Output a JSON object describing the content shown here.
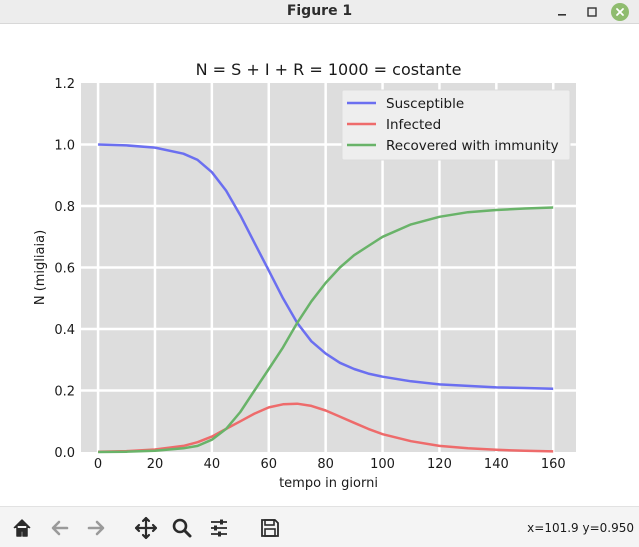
{
  "window": {
    "title": "Figure 1",
    "buttons": {
      "minimize": "minimize-icon",
      "maximize": "maximize-icon",
      "close": "close-icon"
    }
  },
  "toolbar": {
    "icons": [
      "home-icon",
      "back-arrow-icon",
      "forward-arrow-icon",
      "pan-icon",
      "zoom-icon",
      "configure-subplots-icon",
      "save-icon"
    ],
    "coords_text": "x=101.9 y=0.950"
  },
  "colors": {
    "plot_background": "#dddddd",
    "grid": "#ffffff",
    "susceptible": "#6b6ff0",
    "infected": "#ee6b6b",
    "recovered": "#69b369"
  },
  "chart_data": {
    "type": "line",
    "title": "N = S + I + R = 1000 = costante",
    "xlabel": "tempo in giorni",
    "ylabel": "N (migliaia)",
    "xlim": [
      -6,
      168
    ],
    "ylim": [
      0,
      1.2
    ],
    "xticks": [
      0,
      20,
      40,
      60,
      80,
      100,
      120,
      140,
      160
    ],
    "xtick_labels": [
      "0",
      "20",
      "40",
      "60",
      "80",
      "100",
      "120",
      "140",
      "160"
    ],
    "yticks": [
      0,
      0.2,
      0.4,
      0.6,
      0.8,
      1.0,
      1.2
    ],
    "ytick_labels": [
      "0.0",
      "0.2",
      "0.4",
      "0.6",
      "0.8",
      "1.0",
      "1.2"
    ],
    "grid": true,
    "legend_position": "top-right",
    "x": [
      0,
      10,
      20,
      30,
      35,
      40,
      45,
      50,
      55,
      60,
      65,
      70,
      75,
      80,
      85,
      90,
      95,
      100,
      110,
      120,
      130,
      140,
      150,
      160
    ],
    "series": [
      {
        "name": "Susceptible",
        "color": "#6b6ff0",
        "values": [
          1.0,
          0.997,
          0.99,
          0.97,
          0.95,
          0.91,
          0.85,
          0.77,
          0.68,
          0.59,
          0.5,
          0.42,
          0.36,
          0.32,
          0.29,
          0.27,
          0.255,
          0.245,
          0.23,
          0.22,
          0.215,
          0.21,
          0.208,
          0.206
        ]
      },
      {
        "name": "Infected",
        "color": "#ee6b6b",
        "values": [
          0.001,
          0.003,
          0.008,
          0.02,
          0.032,
          0.05,
          0.075,
          0.1,
          0.125,
          0.145,
          0.155,
          0.157,
          0.15,
          0.135,
          0.115,
          0.095,
          0.075,
          0.058,
          0.035,
          0.02,
          0.012,
          0.007,
          0.004,
          0.002
        ]
      },
      {
        "name": "Recovered with immunity",
        "color": "#69b369",
        "values": [
          0.0,
          0.001,
          0.004,
          0.012,
          0.02,
          0.04,
          0.075,
          0.13,
          0.2,
          0.27,
          0.34,
          0.42,
          0.49,
          0.55,
          0.6,
          0.64,
          0.67,
          0.7,
          0.74,
          0.765,
          0.78,
          0.787,
          0.792,
          0.795
        ]
      }
    ]
  }
}
